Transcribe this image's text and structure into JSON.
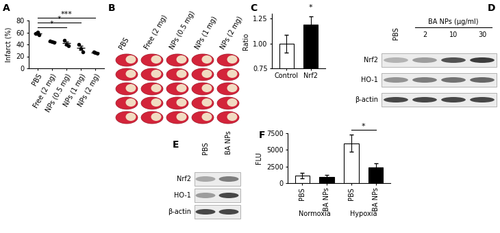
{
  "chart_data": [
    {
      "panel": "A",
      "type": "dot_plot",
      "categories": [
        "PBS",
        "Free (2 mg)",
        "NPs (0.5 mg)",
        "NPs (1 mg)",
        "NPs (2 mg)"
      ],
      "points": [
        [
          58,
          61,
          56
        ],
        [
          46,
          45,
          44
        ],
        [
          47,
          40,
          38
        ],
        [
          40,
          33,
          28
        ],
        [
          27,
          26,
          25
        ]
      ],
      "values": [
        58,
        45,
        42,
        34,
        26
      ],
      "errors": [
        1.5,
        0.6,
        2.7,
        3.5,
        0.6
      ],
      "color": "#000000",
      "y_label": "Infarct (%)",
      "ylim": [
        0,
        80
      ],
      "yticks": [
        0,
        20,
        40,
        60,
        80
      ],
      "annotations": [
        {
          "text": "*",
          "from": 0,
          "to": 2
        },
        {
          "text": "*",
          "from": 0,
          "to": 3
        },
        {
          "text": "***",
          "from": 0,
          "to": 4
        }
      ]
    },
    {
      "panel": "C",
      "type": "bar",
      "categories": [
        "Control",
        "Nrf2"
      ],
      "values": [
        1.0,
        1.19
      ],
      "errors": [
        0.09,
        0.08
      ],
      "colors": [
        "#ffffff",
        "#000000"
      ],
      "y_label": "Ratio",
      "ylim": [
        0.75,
        1.3
      ],
      "yticks": [
        {
          "value": 0.75,
          "label": "0.75"
        },
        {
          "value": 1.0,
          "label": "1.00"
        },
        {
          "value": 1.25,
          "label": "1.25"
        }
      ],
      "annotations": [
        {
          "text": "*",
          "from": 1,
          "to": 1
        }
      ]
    },
    {
      "panel": "F",
      "type": "bar",
      "categories": [
        "PBS",
        "BA NPs",
        "PBS",
        "BA NPs"
      ],
      "groups": [
        {
          "label": "Normoxia",
          "from": 0,
          "to": 1
        },
        {
          "label": "Hypoxia",
          "from": 2,
          "to": 3
        }
      ],
      "values": [
        1100,
        900,
        6000,
        2400
      ],
      "errors": [
        400,
        300,
        1300,
        600
      ],
      "colors": [
        "#ffffff",
        "#000000",
        "#ffffff",
        "#000000"
      ],
      "y_label": "FLU",
      "ylim": [
        0,
        7500
      ],
      "yticks": [
        0,
        2500,
        5000,
        7500
      ],
      "annotations": [
        {
          "text": "*",
          "from": 2,
          "to": 3
        }
      ]
    }
  ],
  "panels": [
    {
      "panel": "B",
      "type": "image_grid",
      "columns": [
        "PBS",
        "Free (2 mg)",
        "NPs (0.5 mg)",
        "NPs (1 mg)",
        "NPs (2 mg)"
      ]
    },
    {
      "panel": "D",
      "type": "western_blot",
      "lanes": [
        "PBS",
        "2",
        "10",
        "30"
      ],
      "lane_group": {
        "label": "BA NPs (μg/ml)",
        "lanes": [
          1,
          2,
          3
        ]
      },
      "rows": [
        {
          "label": "Nrf2",
          "intensity": [
            0.35,
            0.45,
            0.8,
            0.9
          ]
        },
        {
          "label": "HO-1",
          "intensity": [
            0.5,
            0.6,
            0.65,
            0.7
          ]
        },
        {
          "label": "β-actin",
          "intensity": [
            0.85,
            0.85,
            0.85,
            0.85
          ]
        }
      ]
    },
    {
      "panel": "E",
      "type": "western_blot",
      "lanes": [
        "PBS",
        "BA NPs"
      ],
      "rows": [
        {
          "label": "Nrf2",
          "intensity": [
            0.4,
            0.6
          ]
        },
        {
          "label": "HO-1",
          "intensity": [
            0.45,
            0.85
          ]
        },
        {
          "label": "β-actin",
          "intensity": [
            0.85,
            0.85
          ]
        }
      ]
    }
  ]
}
